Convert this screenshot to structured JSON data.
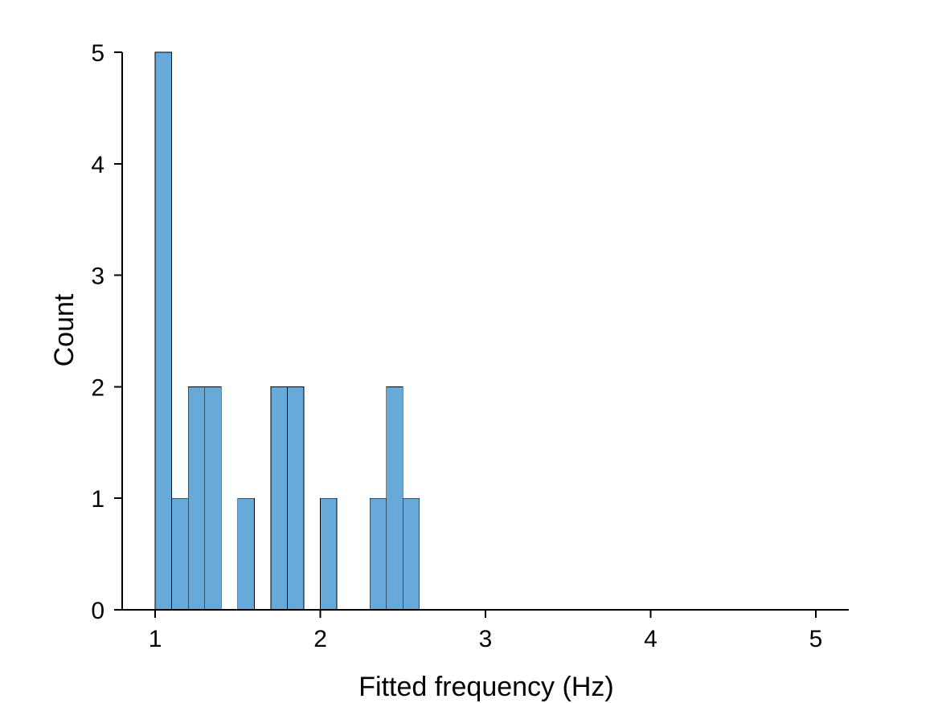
{
  "chart_data": {
    "type": "bar",
    "xlabel": "Fitted frequency (Hz)",
    "ylabel": "Count",
    "xlim": [
      0.8,
      5.2
    ],
    "ylim": [
      0,
      5
    ],
    "xticks": [
      1,
      2,
      3,
      4,
      5
    ],
    "yticks": [
      0,
      1,
      2,
      3,
      4,
      5
    ],
    "bin_width": 0.1,
    "bins": [
      {
        "start": 1.0,
        "end": 1.1,
        "count": 5
      },
      {
        "start": 1.1,
        "end": 1.2,
        "count": 1
      },
      {
        "start": 1.2,
        "end": 1.3,
        "count": 2
      },
      {
        "start": 1.3,
        "end": 1.4,
        "count": 2
      },
      {
        "start": 1.5,
        "end": 1.6,
        "count": 1
      },
      {
        "start": 1.7,
        "end": 1.8,
        "count": 2
      },
      {
        "start": 1.8,
        "end": 1.9,
        "count": 2
      },
      {
        "start": 2.0,
        "end": 2.1,
        "count": 1
      },
      {
        "start": 2.3,
        "end": 2.4,
        "count": 1
      },
      {
        "start": 2.4,
        "end": 2.5,
        "count": 2
      },
      {
        "start": 2.5,
        "end": 2.6,
        "count": 1
      }
    ],
    "grid": false,
    "colors": {
      "bar_fill": "#67a9d8",
      "bar_edge": "#000000",
      "axis": "#000000"
    }
  }
}
